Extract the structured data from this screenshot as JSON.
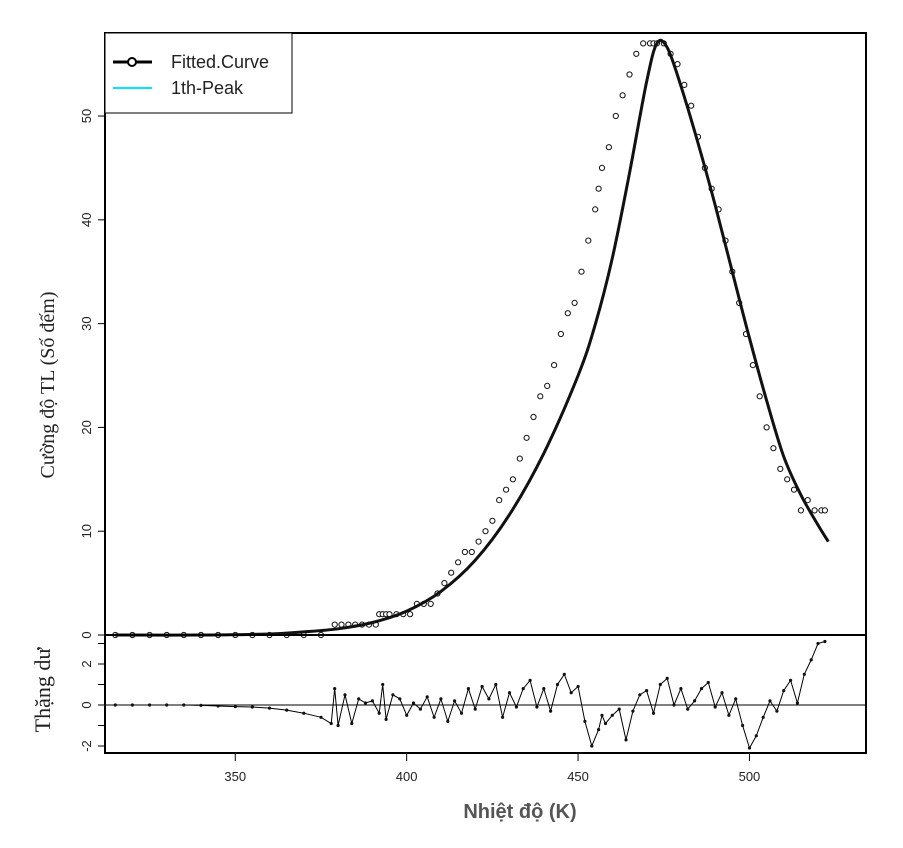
{
  "chart_data": [
    {
      "type": "scatter",
      "xlabel": "Nhiệt độ (K)",
      "ylabel": "Cường độ TL (Số đếm)",
      "xlim": [
        312,
        534
      ],
      "ylim": [
        0,
        58
      ],
      "x_ticks": [
        350,
        400,
        450,
        500
      ],
      "y_ticks": [
        0,
        10,
        20,
        30,
        40,
        50
      ],
      "legend": {
        "placement": "top-left",
        "entries": [
          {
            "label": "Fitted.Curve",
            "color": "#000000",
            "marker": "open-circle-line"
          },
          {
            "label": "1th-Peak",
            "color": "#00e5ff",
            "marker": "line"
          }
        ]
      },
      "fitted_curve": {
        "name": "Fitted.Curve",
        "x": [
          315,
          340,
          360,
          370,
          380,
          390,
          400,
          410,
          420,
          430,
          440,
          450,
          455,
          460,
          465,
          470,
          473,
          476,
          480,
          485,
          490,
          495,
          500,
          505,
          510,
          515,
          520,
          523
        ],
        "y": [
          0,
          0,
          0.1,
          0.3,
          0.6,
          1.2,
          2.3,
          4.2,
          7.2,
          11.6,
          17.5,
          25.0,
          29.9,
          36.3,
          44.5,
          53.3,
          57.0,
          56.6,
          52.9,
          47.4,
          41.4,
          35.0,
          28.6,
          22.6,
          17.2,
          13.5,
          10.6,
          9.0
        ]
      },
      "observed_counts": {
        "x": [
          315,
          320,
          325,
          330,
          335,
          340,
          345,
          350,
          355,
          360,
          365,
          370,
          375,
          379,
          381,
          383,
          385,
          387,
          389,
          391,
          392,
          393,
          394,
          395,
          397,
          399,
          401,
          403,
          405,
          407,
          409,
          411,
          413,
          415,
          417,
          419,
          421,
          423,
          425,
          427,
          429,
          431,
          433,
          435,
          437,
          439,
          441,
          443,
          445,
          447,
          449,
          451,
          453,
          455,
          456,
          457,
          459,
          461,
          463,
          465,
          467,
          469,
          471,
          472,
          473,
          475,
          477,
          479,
          481,
          483,
          485,
          487,
          489,
          491,
          493,
          495,
          497,
          499,
          501,
          503,
          505,
          507,
          509,
          511,
          513,
          515,
          517,
          519,
          521,
          522
        ],
        "y": [
          0,
          0,
          0,
          0,
          0,
          0,
          0,
          0,
          0,
          0,
          0,
          0,
          0,
          1,
          1,
          1,
          1,
          1,
          1,
          1,
          2,
          2,
          2,
          2,
          2,
          2,
          2,
          3,
          3,
          3,
          4,
          5,
          6,
          7,
          8,
          8,
          9,
          10,
          11,
          13,
          14,
          15,
          17,
          19,
          21,
          23,
          24,
          26,
          29,
          31,
          32,
          35,
          38,
          41,
          43,
          45,
          47,
          50,
          52,
          54,
          56,
          57,
          57,
          57,
          57,
          57,
          56,
          55,
          53,
          51,
          48,
          45,
          43,
          41,
          38,
          35,
          32,
          29,
          26,
          23,
          20,
          18,
          16,
          15,
          14,
          12,
          13,
          12,
          12,
          12
        ]
      },
      "first_peak": {
        "name": "1th-Peak",
        "color": "#00e5ff"
      }
    },
    {
      "type": "line",
      "ylabel": "Thặng dư",
      "xlim": [
        312,
        534
      ],
      "ylim": [
        -2.5,
        3.2
      ],
      "y_ticks": [
        -2,
        0,
        2
      ],
      "y_minor_ticks": [
        -1,
        1,
        3
      ],
      "x": [
        315,
        320,
        325,
        330,
        335,
        340,
        345,
        350,
        355,
        360,
        365,
        370,
        375,
        378,
        379,
        380,
        382,
        384,
        386,
        388,
        390,
        392,
        393,
        394,
        396,
        398,
        400,
        402,
        404,
        406,
        408,
        410,
        412,
        414,
        416,
        418,
        420,
        422,
        424,
        426,
        428,
        430,
        432,
        434,
        436,
        438,
        440,
        442,
        444,
        446,
        448,
        450,
        452,
        454,
        456,
        457,
        458,
        460,
        462,
        464,
        466,
        468,
        470,
        472,
        474,
        476,
        478,
        480,
        482,
        484,
        486,
        488,
        490,
        492,
        494,
        496,
        498,
        500,
        502,
        504,
        506,
        508,
        510,
        512,
        514,
        516,
        518,
        520,
        522
      ],
      "y": [
        0,
        0,
        0,
        0,
        0,
        -0.02,
        -0.05,
        -0.08,
        -0.1,
        -0.15,
        -0.25,
        -0.4,
        -0.6,
        -0.9,
        0.8,
        -1.0,
        0.5,
        -0.9,
        0.3,
        0.1,
        0.2,
        -0.4,
        1.0,
        -0.7,
        0.5,
        0.3,
        -0.5,
        0.1,
        -0.2,
        0.4,
        -0.6,
        0.3,
        -0.8,
        0.2,
        -0.4,
        0.8,
        -0.2,
        0.9,
        0.3,
        1.0,
        -0.6,
        0.6,
        -0.1,
        0.8,
        1.2,
        -0.1,
        0.8,
        -0.3,
        1.0,
        1.5,
        0.6,
        0.9,
        -0.8,
        -2.0,
        -1.2,
        -0.5,
        -0.9,
        -0.5,
        -0.2,
        -1.7,
        -0.3,
        0.5,
        0.7,
        -0.4,
        1.0,
        1.3,
        0.0,
        0.8,
        -0.2,
        0.2,
        0.8,
        1.1,
        -0.1,
        0.6,
        -0.5,
        0.3,
        -1.0,
        -2.1,
        -1.5,
        -0.6,
        0.2,
        -0.3,
        0.7,
        1.2,
        0.1,
        1.5,
        2.2,
        3.0,
        3.1
      ]
    }
  ]
}
